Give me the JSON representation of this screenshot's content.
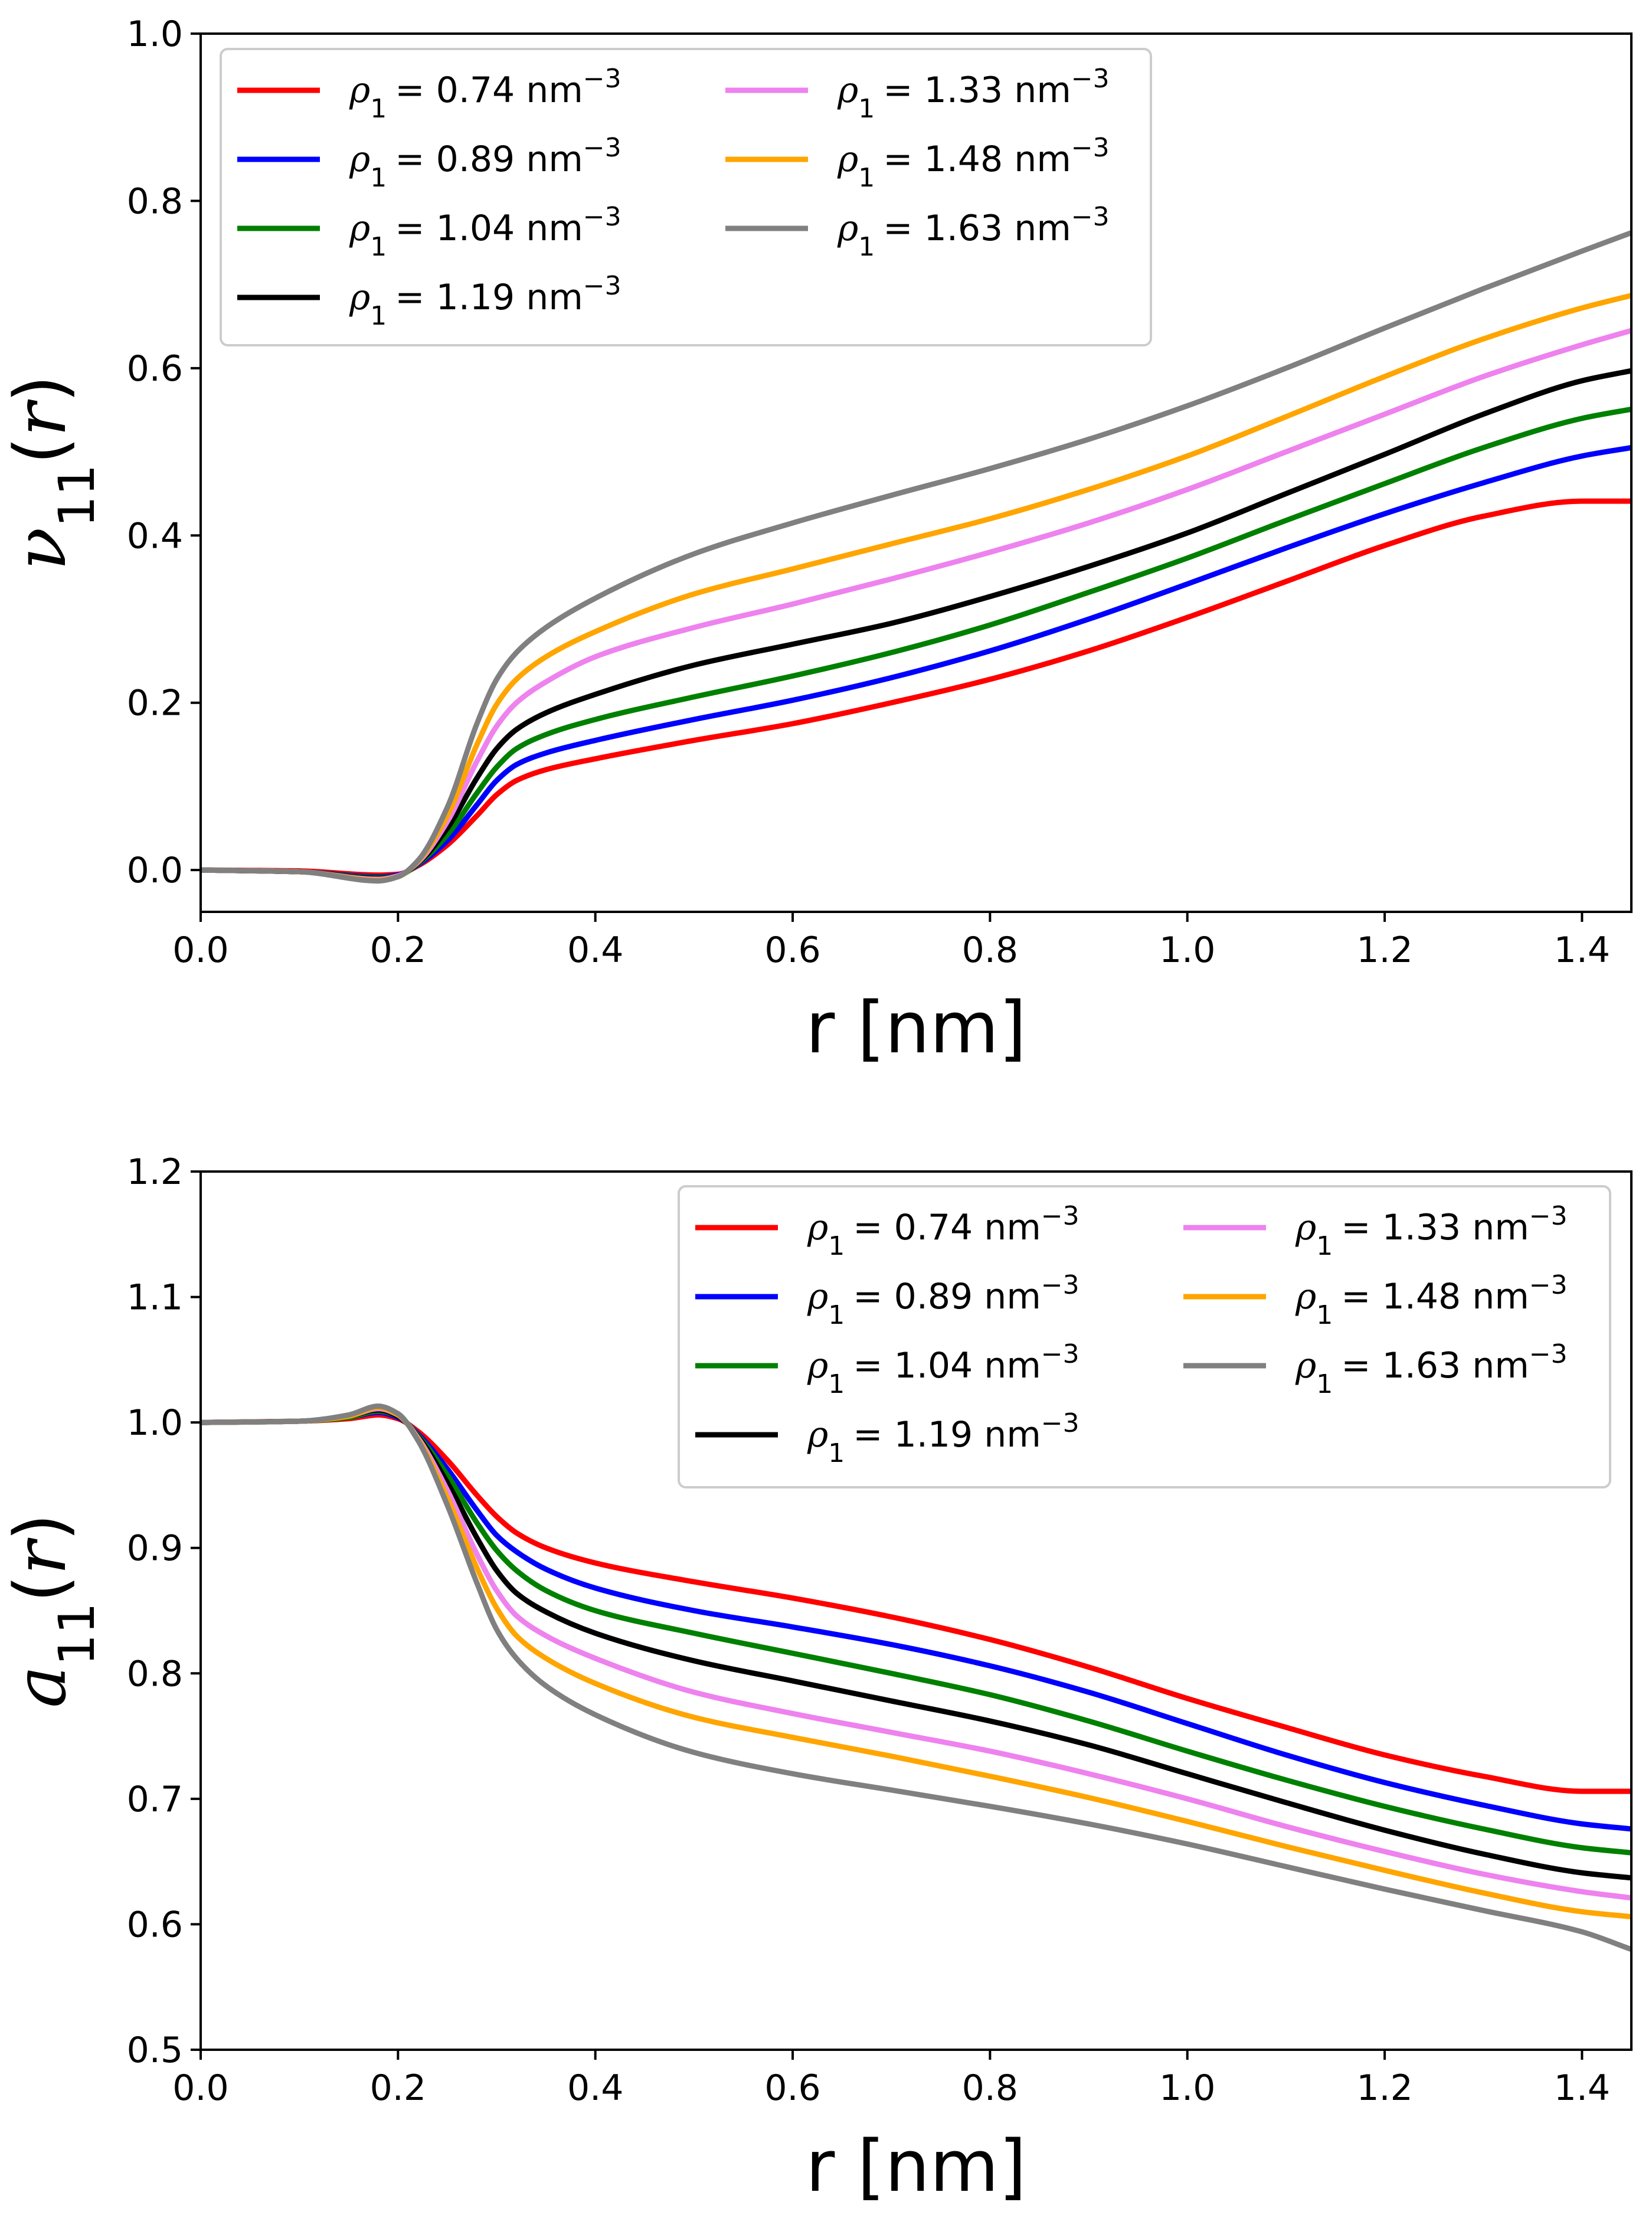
{
  "chart_data": [
    {
      "type": "line",
      "id": "top",
      "xlabel": "r [nm]",
      "ylabel": {
        "var": "ν",
        "sub": "11",
        "arg": "r"
      },
      "xlim": [
        0.0,
        1.45
      ],
      "ylim": [
        -0.05,
        1.0
      ],
      "xticks": [
        0.0,
        0.2,
        0.4,
        0.6,
        0.8,
        1.0,
        1.2,
        1.4
      ],
      "xtick_labels": [
        "0.0",
        "0.2",
        "0.4",
        "0.6",
        "0.8",
        "1.0",
        "1.2",
        "1.4"
      ],
      "yticks": [
        0.0,
        0.2,
        0.4,
        0.6,
        0.8,
        1.0
      ],
      "ytick_labels": [
        "0.0",
        "0.2",
        "0.4",
        "0.6",
        "0.8",
        "1.0"
      ],
      "legend_position": "top-left",
      "legend_columns": 2,
      "series": [
        {
          "name": "ρ1 = 0.74 nm^-3",
          "rho": "0.74",
          "color": "#ff0000",
          "x": [
            0,
            0.1,
            0.18,
            0.2,
            0.22,
            0.25,
            0.28,
            0.3,
            0.32,
            0.35,
            0.4,
            0.5,
            0.6,
            0.7,
            0.8,
            0.9,
            1.0,
            1.1,
            1.2,
            1.3,
            1.4,
            1.45
          ],
          "y": [
            0,
            -0.001,
            -0.006,
            -0.005,
            0.005,
            0.03,
            0.065,
            0.09,
            0.107,
            0.12,
            0.133,
            0.155,
            0.175,
            0.2,
            0.228,
            0.262,
            0.302,
            0.345,
            0.388,
            0.423,
            0.441,
            0.441
          ]
        },
        {
          "name": "ρ1 = 0.89 nm^-3",
          "rho": "0.89",
          "color": "#0000ff",
          "x": [
            0,
            0.1,
            0.18,
            0.2,
            0.22,
            0.25,
            0.28,
            0.3,
            0.32,
            0.35,
            0.4,
            0.5,
            0.6,
            0.7,
            0.8,
            0.9,
            1.0,
            1.1,
            1.2,
            1.3,
            1.4,
            1.45
          ],
          "y": [
            0,
            -0.002,
            -0.008,
            -0.006,
            0.006,
            0.035,
            0.078,
            0.107,
            0.126,
            0.14,
            0.155,
            0.18,
            0.203,
            0.23,
            0.262,
            0.3,
            0.342,
            0.385,
            0.426,
            0.463,
            0.495,
            0.505
          ]
        },
        {
          "name": "ρ1 = 1.04 nm^-3",
          "rho": "1.04",
          "color": "#008000",
          "x": [
            0,
            0.1,
            0.18,
            0.2,
            0.22,
            0.25,
            0.28,
            0.3,
            0.32,
            0.35,
            0.4,
            0.5,
            0.6,
            0.7,
            0.8,
            0.9,
            1.0,
            1.1,
            1.2,
            1.3,
            1.4,
            1.45
          ],
          "y": [
            0,
            -0.002,
            -0.009,
            -0.007,
            0.007,
            0.042,
            0.092,
            0.123,
            0.145,
            0.162,
            0.18,
            0.207,
            0.232,
            0.26,
            0.293,
            0.332,
            0.373,
            0.418,
            0.462,
            0.505,
            0.54,
            0.551
          ]
        },
        {
          "name": "ρ1 = 1.19 nm^-3",
          "rho": "1.19",
          "color": "#000000",
          "x": [
            0,
            0.1,
            0.18,
            0.2,
            0.22,
            0.25,
            0.28,
            0.3,
            0.32,
            0.35,
            0.4,
            0.5,
            0.6,
            0.7,
            0.8,
            0.9,
            1.0,
            1.1,
            1.2,
            1.3,
            1.4,
            1.45
          ],
          "y": [
            0,
            -0.002,
            -0.01,
            -0.007,
            0.008,
            0.05,
            0.11,
            0.145,
            0.168,
            0.188,
            0.21,
            0.245,
            0.27,
            0.295,
            0.327,
            0.363,
            0.403,
            0.45,
            0.497,
            0.545,
            0.585,
            0.597
          ]
        },
        {
          "name": "ρ1 = 1.33 nm^-3",
          "rho": "1.33",
          "color": "#ee82ee",
          "x": [
            0,
            0.1,
            0.18,
            0.2,
            0.22,
            0.25,
            0.28,
            0.3,
            0.32,
            0.35,
            0.4,
            0.5,
            0.6,
            0.7,
            0.8,
            0.9,
            1.0,
            1.1,
            1.2,
            1.3,
            1.4,
            1.45
          ],
          "y": [
            0,
            -0.002,
            -0.011,
            -0.007,
            0.009,
            0.058,
            0.13,
            0.172,
            0.2,
            0.225,
            0.255,
            0.29,
            0.318,
            0.348,
            0.38,
            0.415,
            0.455,
            0.5,
            0.545,
            0.59,
            0.628,
            0.645
          ]
        },
        {
          "name": "ρ1 = 1.48 nm^-3",
          "rho": "1.48",
          "color": "#ffa500",
          "x": [
            0,
            0.1,
            0.18,
            0.2,
            0.22,
            0.25,
            0.28,
            0.3,
            0.32,
            0.35,
            0.4,
            0.5,
            0.6,
            0.7,
            0.8,
            0.9,
            1.0,
            1.1,
            1.2,
            1.3,
            1.4,
            1.45
          ],
          "y": [
            0,
            -0.002,
            -0.012,
            -0.008,
            0.01,
            0.065,
            0.15,
            0.198,
            0.228,
            0.255,
            0.285,
            0.33,
            0.36,
            0.39,
            0.42,
            0.455,
            0.495,
            0.542,
            0.59,
            0.635,
            0.672,
            0.687
          ]
        },
        {
          "name": "ρ1 = 1.63 nm^-3",
          "rho": "1.63",
          "color": "#808080",
          "x": [
            0,
            0.1,
            0.18,
            0.2,
            0.22,
            0.25,
            0.28,
            0.3,
            0.32,
            0.35,
            0.4,
            0.5,
            0.6,
            0.7,
            0.8,
            0.9,
            1.0,
            1.1,
            1.2,
            1.3,
            1.4,
            1.45
          ],
          "y": [
            0,
            -0.002,
            -0.013,
            -0.008,
            0.011,
            0.075,
            0.175,
            0.228,
            0.26,
            0.29,
            0.325,
            0.378,
            0.415,
            0.448,
            0.48,
            0.515,
            0.555,
            0.6,
            0.648,
            0.695,
            0.74,
            0.762
          ]
        }
      ]
    },
    {
      "type": "line",
      "id": "bottom",
      "xlabel": "r [nm]",
      "ylabel": {
        "var": "a",
        "sub": "11",
        "arg": "r"
      },
      "xlim": [
        0.0,
        1.45
      ],
      "ylim": [
        0.5,
        1.2
      ],
      "xticks": [
        0.0,
        0.2,
        0.4,
        0.6,
        0.8,
        1.0,
        1.2,
        1.4
      ],
      "xtick_labels": [
        "0.0",
        "0.2",
        "0.4",
        "0.6",
        "0.8",
        "1.0",
        "1.2",
        "1.4"
      ],
      "yticks": [
        0.5,
        0.6,
        0.7,
        0.8,
        0.9,
        1.0,
        1.1,
        1.2
      ],
      "ytick_labels": [
        "0.5",
        "0.6",
        "0.7",
        "0.8",
        "0.9",
        "1.0",
        "1.1",
        "1.2"
      ],
      "legend_position": "top-right",
      "legend_columns": 2,
      "series": [
        {
          "name": "ρ1 = 0.74 nm^-3",
          "rho": "0.74",
          "color": "#ff0000",
          "x": [
            0,
            0.1,
            0.15,
            0.18,
            0.2,
            0.22,
            0.25,
            0.28,
            0.3,
            0.32,
            0.35,
            0.4,
            0.5,
            0.6,
            0.7,
            0.8,
            0.9,
            1.0,
            1.1,
            1.2,
            1.3,
            1.4,
            1.45
          ],
          "y": [
            1.0,
            1.001,
            1.003,
            1.006,
            1.003,
            0.993,
            0.97,
            0.942,
            0.925,
            0.912,
            0.9,
            0.888,
            0.873,
            0.86,
            0.845,
            0.827,
            0.805,
            0.78,
            0.757,
            0.735,
            0.718,
            0.706,
            0.706
          ]
        },
        {
          "name": "ρ1 = 0.89 nm^-3",
          "rho": "0.89",
          "color": "#0000ff",
          "x": [
            0,
            0.1,
            0.15,
            0.18,
            0.2,
            0.22,
            0.25,
            0.28,
            0.3,
            0.32,
            0.35,
            0.4,
            0.5,
            0.6,
            0.7,
            0.8,
            0.9,
            1.0,
            1.1,
            1.2,
            1.3,
            1.4,
            1.45
          ],
          "y": [
            1.0,
            1.001,
            1.004,
            1.008,
            1.004,
            0.991,
            0.963,
            0.93,
            0.91,
            0.897,
            0.883,
            0.868,
            0.85,
            0.837,
            0.823,
            0.806,
            0.785,
            0.76,
            0.735,
            0.713,
            0.695,
            0.68,
            0.676
          ]
        },
        {
          "name": "ρ1 = 1.04 nm^-3",
          "rho": "1.04",
          "color": "#008000",
          "x": [
            0,
            0.1,
            0.15,
            0.18,
            0.2,
            0.22,
            0.25,
            0.28,
            0.3,
            0.32,
            0.35,
            0.4,
            0.5,
            0.6,
            0.7,
            0.8,
            0.9,
            1.0,
            1.1,
            1.2,
            1.3,
            1.4,
            1.45
          ],
          "y": [
            1.0,
            1.001,
            1.004,
            1.009,
            1.005,
            0.99,
            0.958,
            0.92,
            0.898,
            0.882,
            0.866,
            0.85,
            0.832,
            0.816,
            0.8,
            0.783,
            0.762,
            0.738,
            0.715,
            0.694,
            0.676,
            0.661,
            0.657
          ]
        },
        {
          "name": "ρ1 = 1.19 nm^-3",
          "rho": "1.19",
          "color": "#000000",
          "x": [
            0,
            0.1,
            0.15,
            0.18,
            0.2,
            0.22,
            0.25,
            0.28,
            0.3,
            0.32,
            0.35,
            0.4,
            0.5,
            0.6,
            0.7,
            0.8,
            0.9,
            1.0,
            1.1,
            1.2,
            1.3,
            1.4,
            1.45
          ],
          "y": [
            1.0,
            1.001,
            1.005,
            1.01,
            1.005,
            0.989,
            0.952,
            0.908,
            0.882,
            0.864,
            0.849,
            0.832,
            0.81,
            0.794,
            0.778,
            0.762,
            0.743,
            0.72,
            0.697,
            0.675,
            0.656,
            0.641,
            0.637
          ]
        },
        {
          "name": "ρ1 = 1.33 nm^-3",
          "rho": "1.33",
          "color": "#ee82ee",
          "x": [
            0,
            0.1,
            0.15,
            0.18,
            0.2,
            0.22,
            0.25,
            0.28,
            0.3,
            0.32,
            0.35,
            0.4,
            0.5,
            0.6,
            0.7,
            0.8,
            0.9,
            1.0,
            1.1,
            1.2,
            1.3,
            1.4,
            1.45
          ],
          "y": [
            1.0,
            1.001,
            1.005,
            1.011,
            1.006,
            0.988,
            0.946,
            0.895,
            0.866,
            0.846,
            0.83,
            0.812,
            0.785,
            0.768,
            0.753,
            0.738,
            0.72,
            0.7,
            0.678,
            0.658,
            0.64,
            0.626,
            0.621
          ]
        },
        {
          "name": "ρ1 = 1.48 nm^-3",
          "rho": "1.48",
          "color": "#ffa500",
          "x": [
            0,
            0.1,
            0.15,
            0.18,
            0.2,
            0.22,
            0.25,
            0.28,
            0.3,
            0.32,
            0.35,
            0.4,
            0.5,
            0.6,
            0.7,
            0.8,
            0.9,
            1.0,
            1.1,
            1.2,
            1.3,
            1.4,
            1.45
          ],
          "y": [
            1.0,
            1.001,
            1.005,
            1.012,
            1.006,
            0.987,
            0.94,
            0.884,
            0.852,
            0.83,
            0.812,
            0.792,
            0.765,
            0.749,
            0.734,
            0.718,
            0.701,
            0.682,
            0.662,
            0.643,
            0.625,
            0.61,
            0.606
          ]
        },
        {
          "name": "ρ1 = 1.63 nm^-3",
          "rho": "1.63",
          "color": "#808080",
          "x": [
            0,
            0.1,
            0.15,
            0.18,
            0.2,
            0.22,
            0.25,
            0.28,
            0.3,
            0.32,
            0.35,
            0.4,
            0.5,
            0.6,
            0.7,
            0.8,
            0.9,
            1.0,
            1.1,
            1.2,
            1.3,
            1.4,
            1.45
          ],
          "y": [
            1.0,
            1.001,
            1.006,
            1.013,
            1.007,
            0.986,
            0.934,
            0.872,
            0.835,
            0.812,
            0.79,
            0.767,
            0.737,
            0.72,
            0.707,
            0.694,
            0.68,
            0.664,
            0.646,
            0.628,
            0.611,
            0.594,
            0.58
          ]
        }
      ]
    }
  ]
}
